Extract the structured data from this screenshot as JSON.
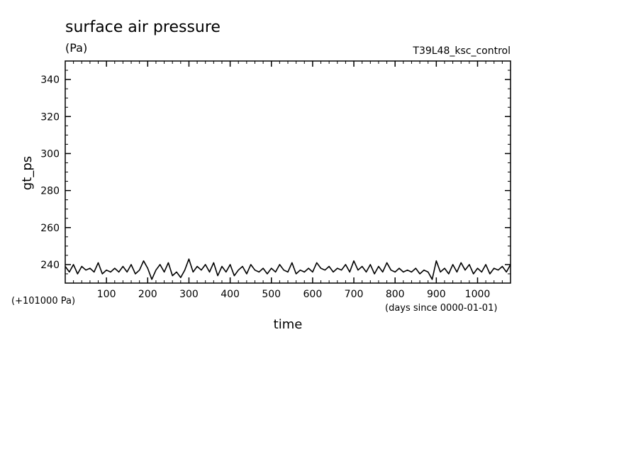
{
  "chart_data": {
    "type": "line",
    "title": "surface air pressure",
    "units": "(Pa)",
    "run_name": "T39L48_ksc_control",
    "xlabel": "time",
    "ylabel": "gt_ps",
    "x_units_note": "(days since 0000-01-01)",
    "y_offset_note": "(+101000 Pa)",
    "xlim": [
      0,
      1080
    ],
    "ylim": [
      230,
      350
    ],
    "x_ticks": [
      100,
      200,
      300,
      400,
      500,
      600,
      700,
      800,
      900,
      1000
    ],
    "y_ticks": [
      240,
      260,
      280,
      300,
      320,
      340
    ],
    "grid": false,
    "series": [
      {
        "color": "#000000",
        "x": [
          0,
          10,
          20,
          30,
          40,
          50,
          60,
          70,
          80,
          90,
          100,
          110,
          120,
          130,
          140,
          150,
          160,
          170,
          180,
          190,
          200,
          210,
          220,
          230,
          240,
          250,
          260,
          270,
          280,
          290,
          300,
          310,
          320,
          330,
          340,
          350,
          360,
          370,
          380,
          390,
          400,
          410,
          420,
          430,
          440,
          450,
          460,
          470,
          480,
          490,
          500,
          510,
          520,
          530,
          540,
          550,
          560,
          570,
          580,
          590,
          600,
          610,
          620,
          630,
          640,
          650,
          660,
          670,
          680,
          690,
          700,
          710,
          720,
          730,
          740,
          750,
          760,
          770,
          780,
          790,
          800,
          810,
          820,
          830,
          840,
          850,
          860,
          870,
          880,
          890,
          900,
          910,
          920,
          930,
          940,
          950,
          960,
          970,
          980,
          990,
          1000,
          1010,
          1020,
          1030,
          1040,
          1050,
          1060,
          1070,
          1080
        ],
        "y": [
          239,
          236,
          240,
          235,
          239,
          237,
          238,
          236,
          241,
          235,
          237,
          236,
          238,
          236,
          239,
          236,
          240,
          235,
          237,
          242,
          238,
          232,
          237,
          240,
          236,
          241,
          234,
          236,
          233,
          237,
          243,
          236,
          239,
          237,
          240,
          236,
          241,
          234,
          239,
          236,
          240,
          234,
          237,
          239,
          235,
          240,
          237,
          236,
          238,
          235,
          238,
          236,
          240,
          237,
          236,
          241,
          235,
          237,
          236,
          238,
          236,
          241,
          238,
          237,
          239,
          236,
          238,
          237,
          240,
          236,
          242,
          237,
          239,
          236,
          240,
          235,
          239,
          236,
          241,
          237,
          236,
          238,
          236,
          237,
          236,
          238,
          235,
          237,
          236,
          232,
          242,
          236,
          238,
          235,
          240,
          236,
          241,
          237,
          240,
          235,
          238,
          236,
          240,
          235,
          238,
          237,
          239,
          236,
          240
        ]
      }
    ]
  }
}
